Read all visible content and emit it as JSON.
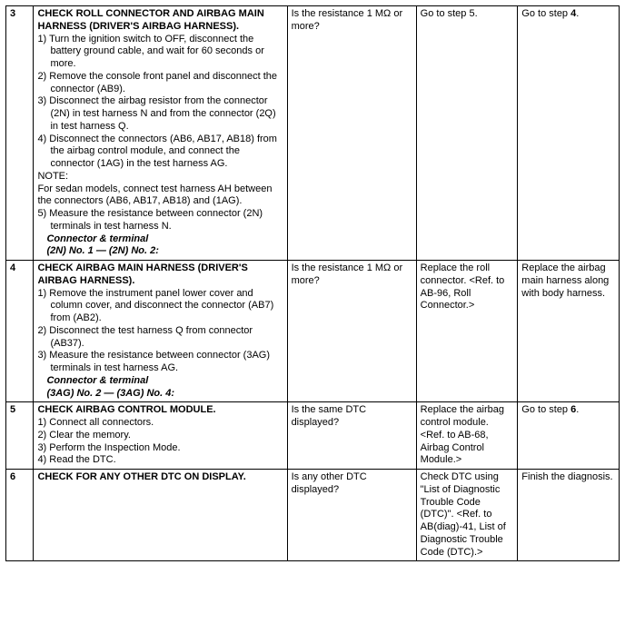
{
  "table": {
    "rows": [
      {
        "num": "3",
        "proc_title": "CHECK ROLL CONNECTOR AND AIRBAG MAIN HARNESS (DRIVER'S AIRBAG HARNESS).",
        "proc_body": [
          "1)   Turn the ignition switch to OFF, disconnect the battery ground cable, and wait for 60 seconds or more.",
          "2)   Remove the console front panel and disconnect the connector (AB9).",
          "3)   Disconnect the airbag resistor from the connector (2N) in test harness N and from the connector (2Q) in test harness Q.",
          "4)   Disconnect the connectors (AB6, AB17, AB18) from the airbag control module, and connect the connector (1AG) in the test harness AG.",
          "NOTE:",
          "For sedan models, connect test harness AH between the connectors (AB6, AB17, AB18) and (1AG).",
          "5)   Measure the resistance between connector (2N) terminals in test harness N."
        ],
        "conn_label": "Connector & terminal",
        "conn_val": "(2N) No. 1 — (2N) No. 2:",
        "check": "Is the resistance 1 MΩ or more?",
        "yes_plain": "Go to step 5.",
        "no_pre": "Go to step ",
        "no_bold": "4",
        "no_post": "."
      },
      {
        "num": "4",
        "proc_title": "CHECK AIRBAG MAIN HARNESS (DRIVER'S AIRBAG HARNESS).",
        "proc_body": [
          "1)   Remove the instrument panel lower cover and column cover, and disconnect the connector (AB7) from (AB2).",
          "2)   Disconnect the test harness Q from connector (AB37).",
          "3)   Measure the resistance between connector (3AG) terminals in test harness AG."
        ],
        "conn_label": "Connector & terminal",
        "conn_val": "(3AG) No. 2 — (3AG) No. 4:",
        "check": "Is the resistance 1 MΩ or more?",
        "yes_plain": "Replace the roll connector. <Ref. to AB-96, Roll Connector.>",
        "no_plain": "Replace the airbag main harness along with body harness."
      },
      {
        "num": "5",
        "proc_title": "CHECK AIRBAG CONTROL MODULE.",
        "proc_body": [
          "1)   Connect all connectors.",
          "2)   Clear the memory.",
          "3)   Perform the Inspection Mode.",
          "4)   Read the DTC."
        ],
        "check": "Is the same DTC displayed?",
        "yes_plain": "Replace the airbag control module. <Ref. to AB-68, Airbag Control Module.>",
        "no_pre": "Go to step ",
        "no_bold": "6",
        "no_post": "."
      },
      {
        "num": "6",
        "proc_title": "CHECK FOR ANY OTHER DTC ON DISPLAY.",
        "check": "Is any other DTC displayed?",
        "yes_plain": "Check DTC using \"List of Diagnostic Trouble Code (DTC)\". <Ref. to AB(diag)-41, List of Diagnostic Trouble Code (DTC).>",
        "no_plain": "Finish the diagnosis."
      }
    ]
  }
}
